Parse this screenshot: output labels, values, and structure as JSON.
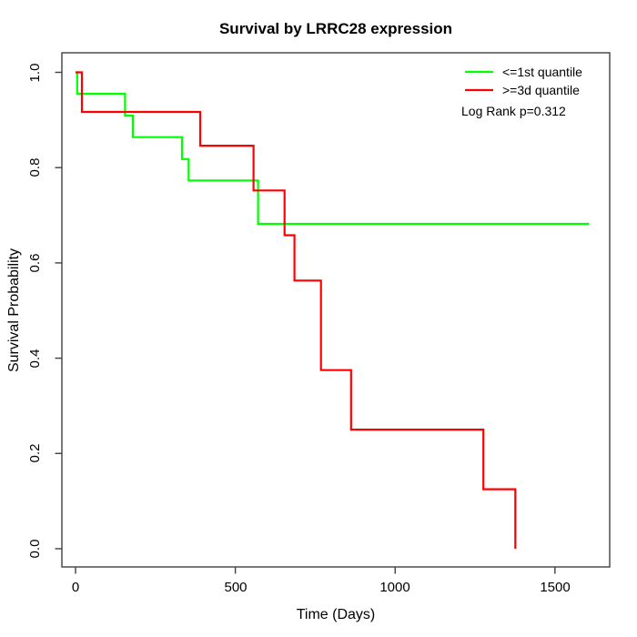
{
  "chart_data": {
    "type": "line",
    "subtype": "kaplan-meier-step",
    "title": "Survival by LRRC28 expression",
    "xlabel": "Time (Days)",
    "ylabel": "Survival Probability",
    "xlim": [
      0,
      1600
    ],
    "ylim": [
      0.0,
      1.0
    ],
    "x_ticks": [
      0,
      500,
      1000,
      1500
    ],
    "x_tick_labels": [
      "0",
      "500",
      "1000",
      "1500"
    ],
    "y_ticks": [
      0.0,
      0.2,
      0.4,
      0.6,
      0.8,
      1.0
    ],
    "y_tick_labels": [
      "0.0",
      "0.2",
      "0.4",
      "0.6",
      "0.8",
      "1.0"
    ],
    "grid": false,
    "legend_position": "top-right",
    "frame_color": "#404040",
    "series": [
      {
        "name": "<=1st quantile",
        "color": "#00ff00",
        "points": [
          [
            0,
            1.0
          ],
          [
            5,
            0.955
          ],
          [
            155,
            0.909
          ],
          [
            179,
            0.864
          ],
          [
            333,
            0.818
          ],
          [
            354,
            0.773
          ],
          [
            571,
            0.682
          ],
          [
            1607,
            0.682
          ]
        ]
      },
      {
        "name": ">=3d quantile",
        "color": "#ff0000",
        "points": [
          [
            0,
            1.0
          ],
          [
            20,
            0.917
          ],
          [
            390,
            0.846
          ],
          [
            557,
            0.752
          ],
          [
            654,
            0.658
          ],
          [
            685,
            0.563
          ],
          [
            768,
            0.375
          ],
          [
            862,
            0.25
          ],
          [
            1276,
            0.125
          ],
          [
            1376,
            0.0
          ]
        ]
      }
    ],
    "annotations": [
      "Log Rank p=0.312"
    ]
  }
}
